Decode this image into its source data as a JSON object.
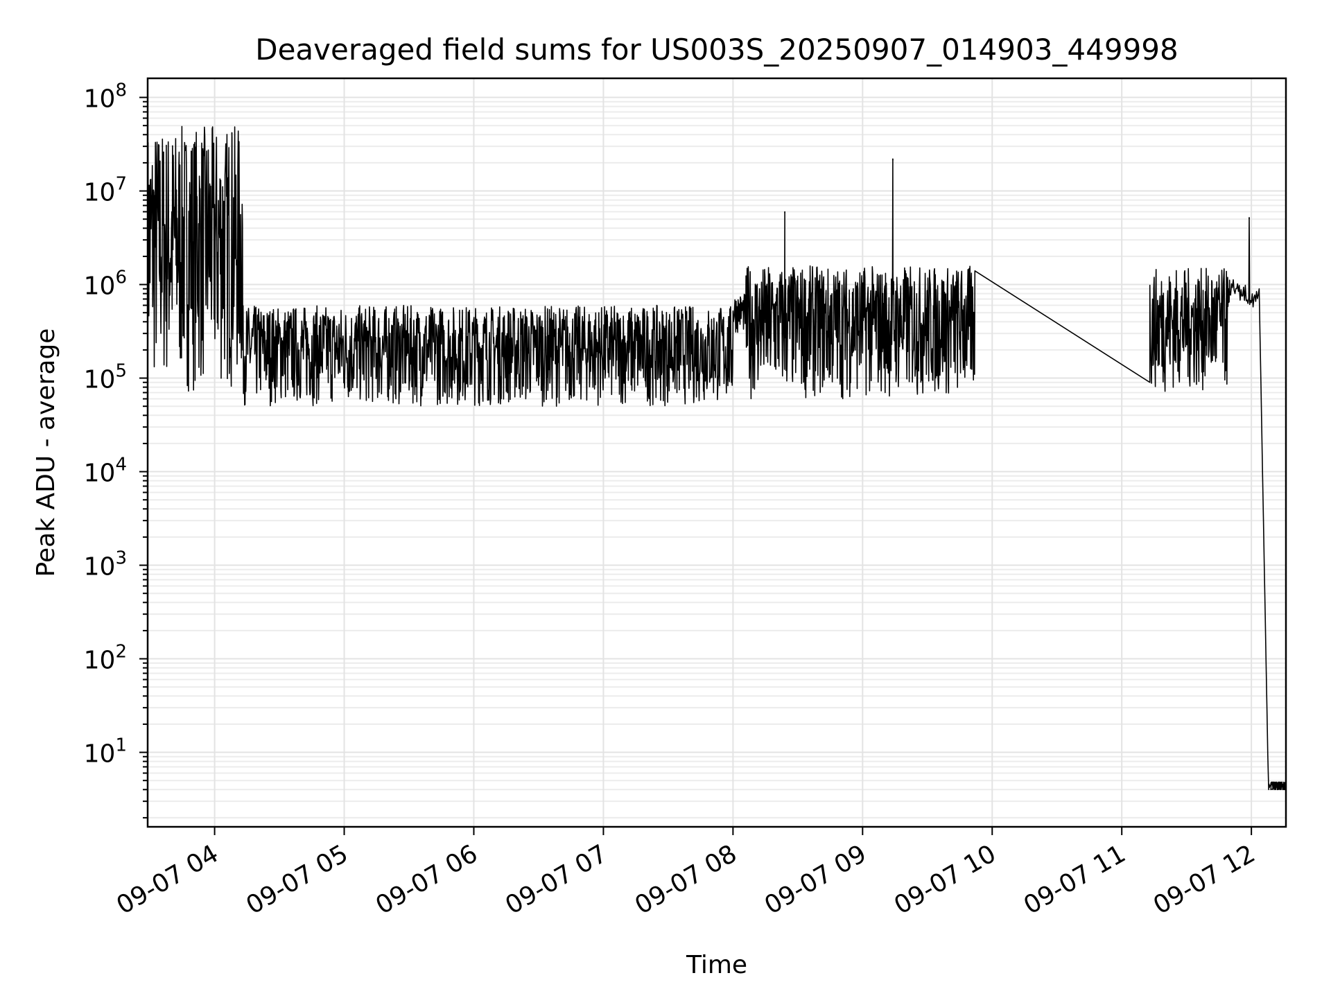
{
  "chart_data": {
    "type": "line",
    "title": "Deaveraged field sums for US003S_20250907_014903_449998",
    "xlabel": "Time",
    "ylabel": "Peak ADU - average",
    "yscale": "log",
    "ylim": [
      1.6,
      160000000
    ],
    "xlim": [
      "09-07 03:29",
      "09-07 12:16"
    ],
    "grid": true,
    "x_ticks": [
      "09-07 04",
      "09-07 05",
      "09-07 06",
      "09-07 07",
      "09-07 08",
      "09-07 09",
      "09-07 10",
      "09-07 11",
      "09-07 12"
    ],
    "y_ticks": [
      {
        "base": "10",
        "exp": "1",
        "value": 10
      },
      {
        "base": "10",
        "exp": "2",
        "value": 100
      },
      {
        "base": "10",
        "exp": "3",
        "value": 1000
      },
      {
        "base": "10",
        "exp": "4",
        "value": 10000
      },
      {
        "base": "10",
        "exp": "5",
        "value": 100000
      },
      {
        "base": "10",
        "exp": "6",
        "value": 1000000
      },
      {
        "base": "10",
        "exp": "7",
        "value": 10000000
      },
      {
        "base": "10",
        "exp": "8",
        "value": 100000000
      }
    ],
    "series_color": "#000000",
    "segments": [
      {
        "x_start": "09-07 03:29",
        "x_end": "09-07 04:13",
        "y_low": 70000,
        "y_high": 50000000
      },
      {
        "x_start": "09-07 04:13",
        "x_end": "09-07 08:00",
        "y_low": 50000,
        "y_high": 600000
      },
      {
        "x_start": "09-07 08:00",
        "x_end": "09-07 08:06",
        "y_low": 300000,
        "y_high": 800000
      },
      {
        "x_start": "09-07 08:06",
        "x_end": "09-07 09:52",
        "y_low": 60000,
        "y_high": 1600000
      },
      {
        "x_start": "09-07 09:52",
        "x_end": "09-07 11:13",
        "y_low": 90000,
        "y_high": 1400000
      },
      {
        "x_start": "09-07 11:13",
        "x_end": "09-07 11:50",
        "y_low": 70000,
        "y_high": 1500000
      },
      {
        "x_start": "09-07 11:50",
        "x_end": "09-07 12:08",
        "y_low": 300000,
        "y_high": 1200000
      },
      {
        "x_start": "09-07 12:08",
        "x_end": "09-07 12:16",
        "y_low": 4,
        "y_high": 4.8
      }
    ],
    "spikes": [
      {
        "x": "09-07 04:08",
        "y": 42000000
      },
      {
        "x": "09-07 08:24",
        "y": 6000000
      },
      {
        "x": "09-07 09:14",
        "y": 22000000
      },
      {
        "x": "09-07 11:59",
        "y": 5200000
      }
    ]
  }
}
